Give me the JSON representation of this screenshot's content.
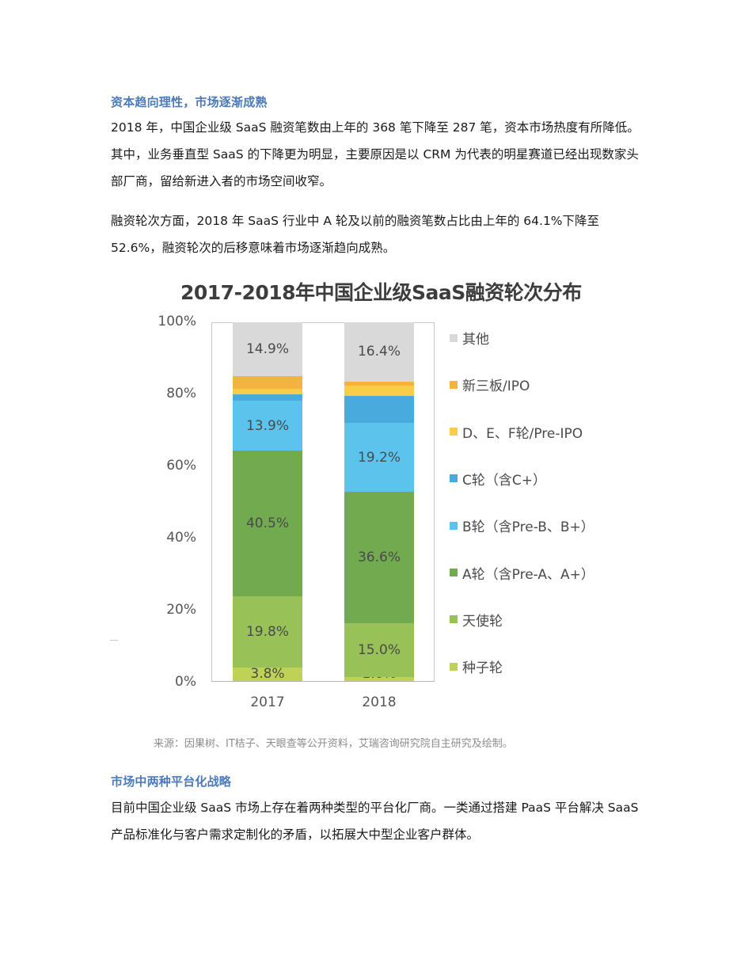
{
  "section1": {
    "heading": "资本趋向理性，市场逐渐成熟",
    "para1": "2018 年，中国企业级 SaaS 融资笔数由上年的 368 笔下降至 287 笔，资本市场热度有所降低。其中，业务垂直型 SaaS 的下降更为明显，主要原因是以 CRM 为代表的明星赛道已经出现数家头部厂商，留给新进入者的市场空间收窄。",
    "para2": "融资轮次方面，2018 年 SaaS 行业中 A 轮及以前的融资笔数占比由上年的 64.1%下降至 52.6%，融资轮次的后移意味着市场逐渐趋向成熟。"
  },
  "chart_data": {
    "type": "bar",
    "stacked": true,
    "title": "2017-2018年中国企业级SaaS融资轮次分布",
    "categories": [
      "2017",
      "2018"
    ],
    "xlabel": "",
    "ylabel": "",
    "ylim": [
      0,
      100
    ],
    "yticks": [
      "0%",
      "20%",
      "40%",
      "60%",
      "80%",
      "100%"
    ],
    "grid": false,
    "legend_position": "right",
    "series": [
      {
        "name": "种子轮",
        "color": "#bfd256",
        "values": [
          3.8,
          1.0
        ],
        "labels": [
          "3.8%",
          "1.0%"
        ]
      },
      {
        "name": "天使轮",
        "color": "#98c158",
        "values": [
          19.8,
          15.0
        ],
        "labels": [
          "19.8%",
          "15.0%"
        ]
      },
      {
        "name": "A轮（含Pre-A、A+）",
        "color": "#72aa50",
        "values": [
          40.5,
          36.6
        ],
        "labels": [
          "40.5%",
          "36.6%"
        ]
      },
      {
        "name": "B轮（含Pre-B、B+）",
        "color": "#5bc3ec",
        "values": [
          13.9,
          19.2
        ],
        "labels": [
          "13.9%",
          "19.2%"
        ]
      },
      {
        "name": "C轮（含C+）",
        "color": "#48aadd",
        "values": [
          1.8,
          7.5
        ],
        "labels": [
          "",
          ""
        ]
      },
      {
        "name": "D、E、F轮/Pre-IPO",
        "color": "#f8cd48",
        "values": [
          1.5,
          2.8
        ],
        "labels": [
          "",
          ""
        ]
      },
      {
        "name": "新三板/IPO",
        "color": "#f3b340",
        "values": [
          3.7,
          1.3
        ],
        "labels": [
          "",
          ""
        ]
      },
      {
        "name": "其他",
        "color": "#d9d9d9",
        "values": [
          14.9,
          16.4
        ],
        "labels": [
          "14.9%",
          "16.4%"
        ]
      }
    ],
    "source": "来源：因果树、IT桔子、天眼查等公开资料，艾瑞咨询研究院自主研究及绘制。"
  },
  "legend": [
    {
      "label": "其他",
      "color": "#d9d9d9"
    },
    {
      "label": "新三板/IPO",
      "color": "#f3b340"
    },
    {
      "label": "D、E、F轮/Pre-IPO",
      "color": "#f8cd48"
    },
    {
      "label": "C轮（含C+）",
      "color": "#48aadd"
    },
    {
      "label": "B轮（含Pre-B、B+）",
      "color": "#5bc3ec"
    },
    {
      "label": "A轮（含Pre-A、A+）",
      "color": "#72aa50"
    },
    {
      "label": "天使轮",
      "color": "#98c158"
    },
    {
      "label": "种子轮",
      "color": "#bfd256"
    }
  ],
  "section2": {
    "heading": "市场中两种平台化战略",
    "para1": "目前中国企业级 SaaS 市场上存在着两种类型的平台化厂商。一类通过搭建 PaaS 平台解决 SaaS 产品标准化与客户需求定制化的矛盾，以拓展大中型企业客户群体。"
  },
  "colors": {
    "heading": "#4a7ab8",
    "body_text": "#1a1a1a",
    "chart_title": "#3d3d3d",
    "source_text": "#8c8c8c"
  }
}
